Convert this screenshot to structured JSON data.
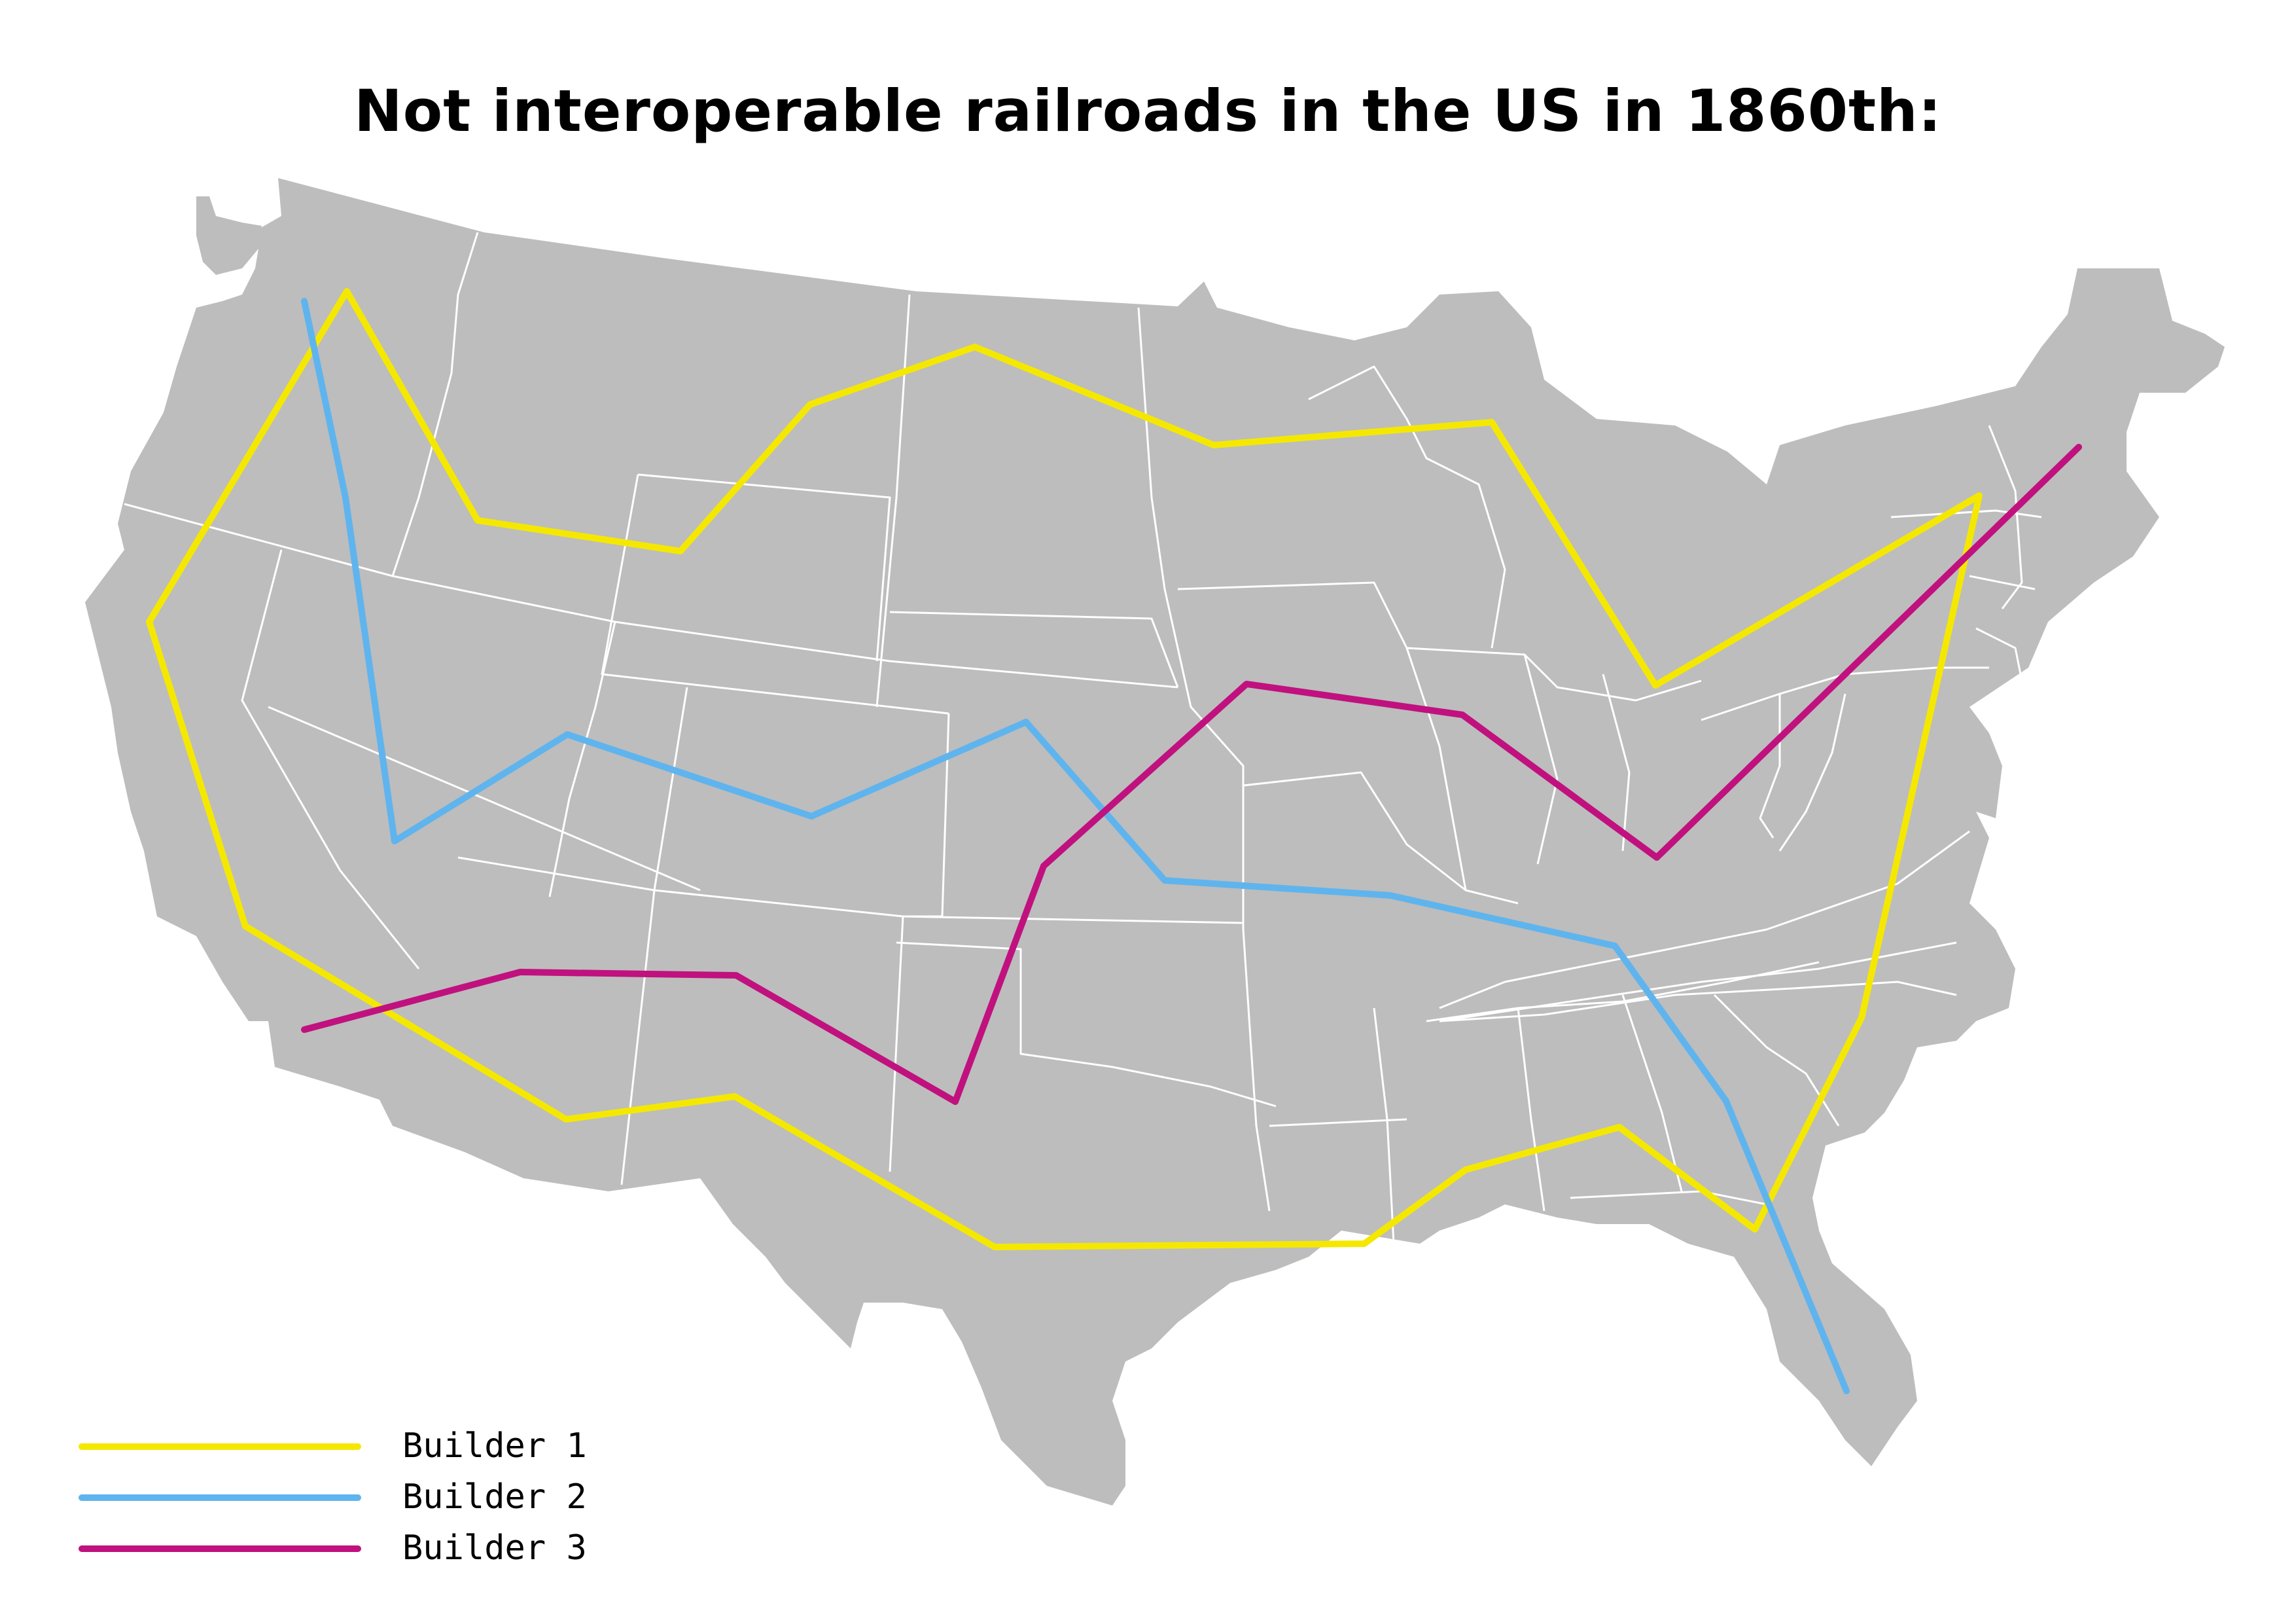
{
  "title": "Not interoperable railroads in the US in 1860th:",
  "colors": {
    "land": "#bdbdbd",
    "state_border": "#ffffff",
    "builder_1": "#f5e800",
    "builder_2": "#5fb4ee",
    "builder_3": "#c0117f"
  },
  "legend": [
    {
      "label": "Builder 1",
      "color": "#f5e800"
    },
    {
      "label": "Builder 2",
      "color": "#5fb4ee"
    },
    {
      "label": "Builder 3",
      "color": "#c0117f"
    }
  ]
}
